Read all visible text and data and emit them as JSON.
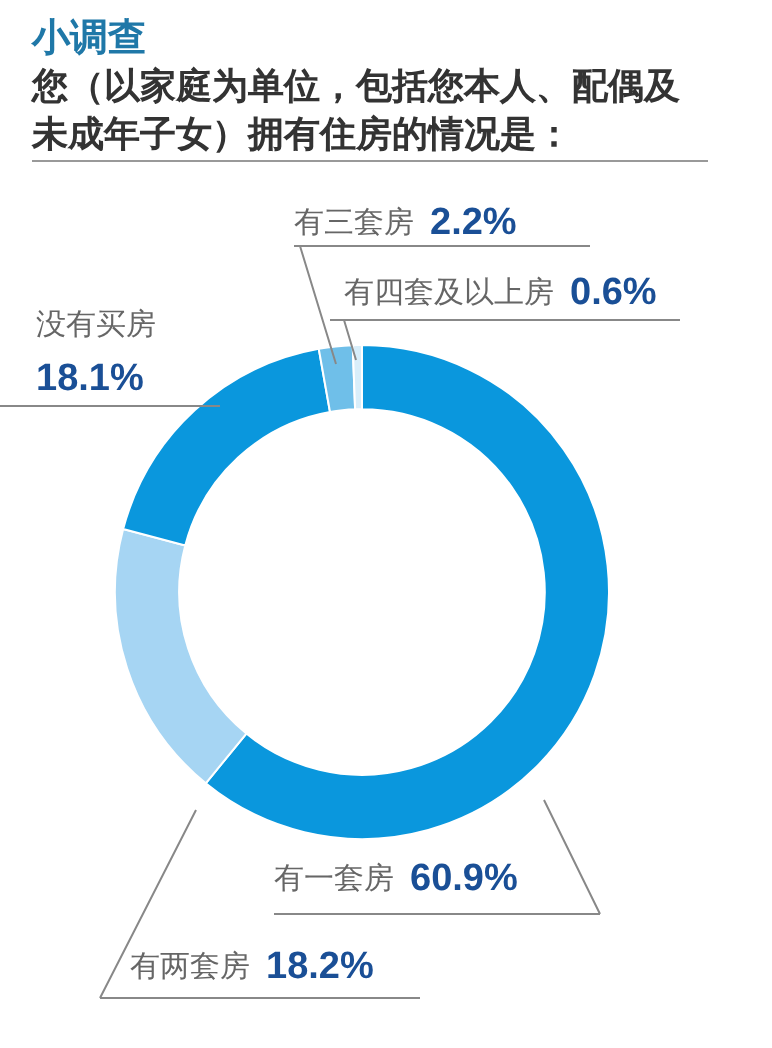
{
  "chart_data": {
    "type": "donut",
    "title": "小调查",
    "subtitle": "您（以家庭为单位，包括您本人、配偶及未成年子女）拥有住房的情况是：",
    "categories": [
      "有一套房",
      "有两套房",
      "没有买房",
      "有三套房",
      "有四套及以上房"
    ],
    "values": [
      60.9,
      18.2,
      18.1,
      2.2,
      0.6
    ],
    "value_labels": [
      "60.9%",
      "18.2%",
      "18.1%",
      "2.2%",
      "0.6%"
    ],
    "colors": [
      "#0a97dd",
      "#a6d5f3",
      "#0a97dd",
      "#6fbfe9",
      "#d8eefa"
    ],
    "legend": false
  }
}
